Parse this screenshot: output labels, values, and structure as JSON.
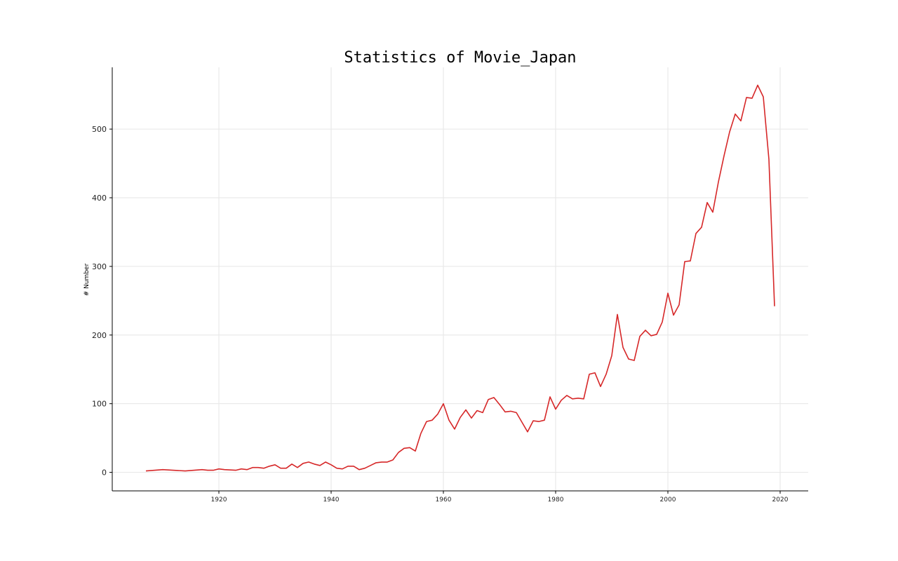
{
  "chart_data": {
    "type": "line",
    "title": "Statistics of Movie_Japan",
    "xlabel": "",
    "ylabel": "# Number",
    "xlim": [
      1901,
      2025
    ],
    "ylim": [
      -27,
      590
    ],
    "xticks": [
      1920,
      1940,
      1960,
      1980,
      2000,
      2020
    ],
    "yticks": [
      0,
      100,
      200,
      300,
      400,
      500
    ],
    "grid": true,
    "line_color": "#d62728",
    "series": [
      {
        "x": [
          1907,
          1910,
          1914,
          1917,
          1918,
          1919,
          1920,
          1921,
          1923,
          1924,
          1925,
          1926,
          1927,
          1928,
          1929,
          1930,
          1931,
          1932,
          1933,
          1934,
          1935,
          1936,
          1937,
          1938,
          1939,
          1940,
          1941,
          1942,
          1943,
          1944,
          1945,
          1946,
          1947,
          1948,
          1949,
          1950,
          1951,
          1952,
          1953,
          1954,
          1955,
          1956,
          1957,
          1958,
          1959,
          1960,
          1961,
          1962,
          1963,
          1964,
          1965,
          1966,
          1967,
          1968,
          1969,
          1970,
          1971,
          1972,
          1973,
          1974,
          1975,
          1976,
          1977,
          1978,
          1979,
          1980,
          1981,
          1982,
          1983,
          1984,
          1985,
          1986,
          1987,
          1988,
          1989,
          1990,
          1991,
          1992,
          1993,
          1994,
          1995,
          1996,
          1997,
          1998,
          1999,
          2000,
          2001,
          2002,
          2003,
          2004,
          2005,
          2006,
          2007,
          2008,
          2009,
          2010,
          2011,
          2012,
          2013,
          2014,
          2015,
          2016,
          2017,
          2018,
          2019
        ],
        "y": [
          2,
          4,
          2,
          4,
          3,
          3,
          5,
          4,
          3,
          5,
          4,
          7,
          7,
          6,
          9,
          11,
          6,
          6,
          12,
          7,
          13,
          15,
          12,
          10,
          15,
          11,
          6,
          5,
          9,
          9,
          4,
          6,
          10,
          14,
          15,
          15,
          18,
          29,
          35,
          36,
          31,
          57,
          74,
          76,
          85,
          100,
          76,
          63,
          80,
          91,
          79,
          90,
          87,
          106,
          109,
          99,
          88,
          89,
          87,
          73,
          59,
          75,
          74,
          76,
          110,
          92,
          105,
          112,
          107,
          108,
          107,
          143,
          145,
          125,
          143,
          170,
          230,
          182,
          165,
          163,
          198,
          207,
          199,
          201,
          219,
          261,
          229,
          244,
          307,
          308,
          348,
          357,
          393,
          379,
          423,
          461,
          496,
          522,
          512,
          546,
          545,
          564,
          547,
          456,
          242
        ]
      }
    ]
  }
}
